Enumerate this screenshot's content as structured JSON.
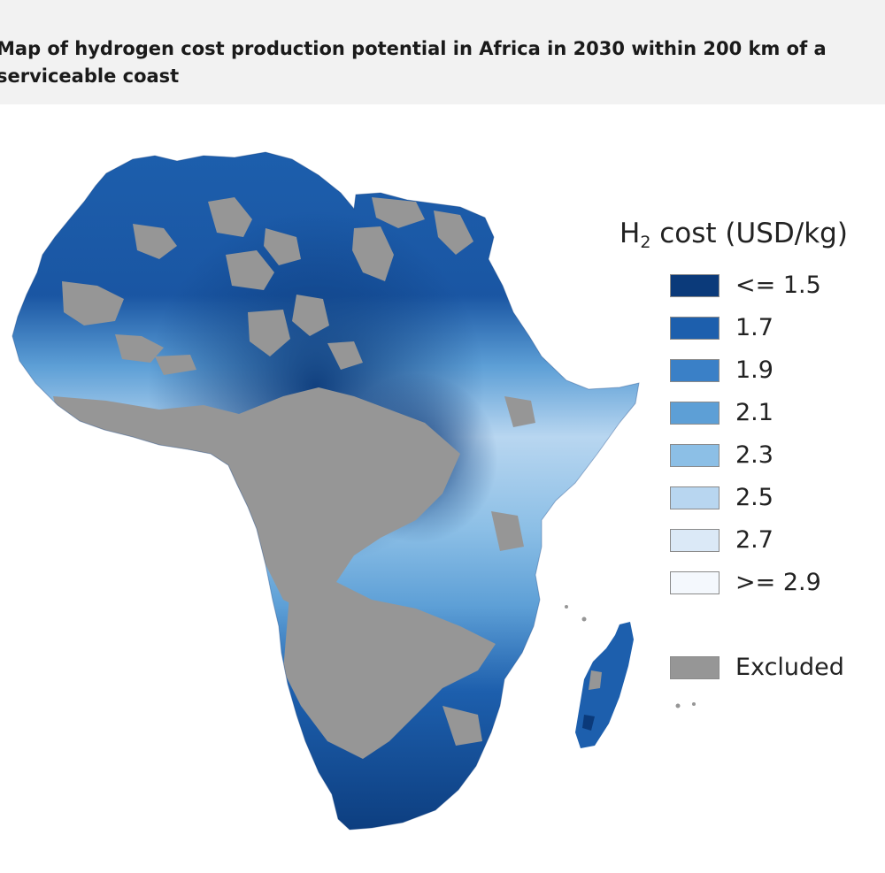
{
  "title": "Map of hydrogen cost production potential in Africa in 2030 within 200 km of a serviceable coast",
  "legend": {
    "title_symbol": "H",
    "title_subscript": "2",
    "title_rest": " cost (USD/kg)",
    "items": [
      {
        "label": "<= 1.5",
        "color": "#0b3a7a"
      },
      {
        "label": "1.7",
        "color": "#1d5fad"
      },
      {
        "label": "1.9",
        "color": "#3a80c7"
      },
      {
        "label": "2.1",
        "color": "#5d9fd6"
      },
      {
        "label": "2.3",
        "color": "#8cbfe6"
      },
      {
        "label": "2.5",
        "color": "#b8d6f0"
      },
      {
        "label": "2.7",
        "color": "#dbe9f7"
      },
      {
        "label": ">= 2.9",
        "color": "#f4f8fd"
      }
    ],
    "excluded": {
      "label": "Excluded",
      "color": "#969696"
    }
  }
}
